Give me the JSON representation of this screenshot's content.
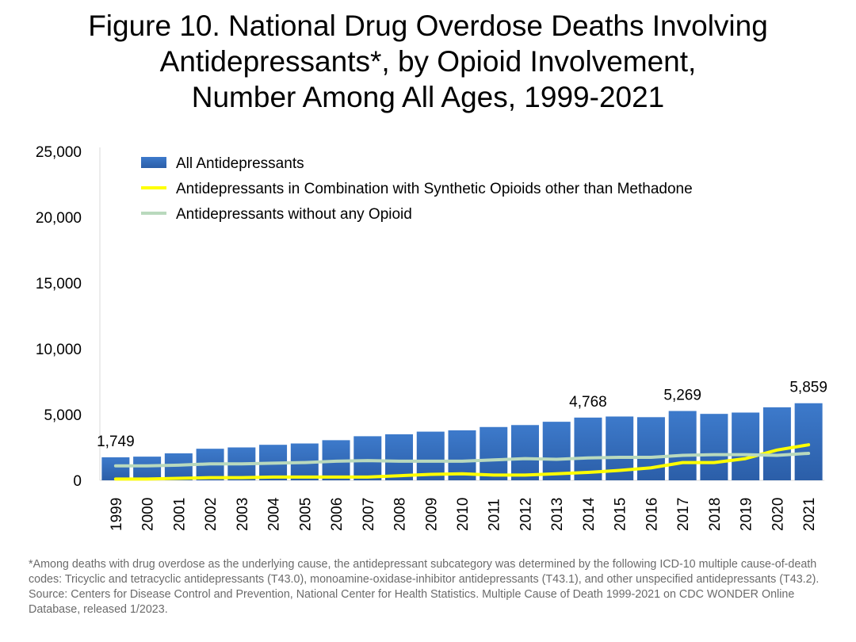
{
  "chart_data": {
    "type": "bar",
    "title_lines": [
      "Figure 10. National Drug Overdose Deaths Involving",
      "Antidepressants*, by Opioid Involvement,",
      "Number Among All Ages, 1999-2021"
    ],
    "xlabel": "",
    "ylabel": "",
    "ylim": [
      0,
      25000
    ],
    "yticks": [
      "0",
      "5,000",
      "10,000",
      "15,000",
      "20,000",
      "25,000"
    ],
    "ytick_values": [
      0,
      5000,
      10000,
      15000,
      20000,
      25000
    ],
    "grid": false,
    "legend_position": "top-left",
    "categories": [
      "1999",
      "2000",
      "2001",
      "2002",
      "2003",
      "2004",
      "2005",
      "2006",
      "2007",
      "2008",
      "2009",
      "2010",
      "2011",
      "2012",
      "2013",
      "2014",
      "2015",
      "2016",
      "2017",
      "2018",
      "2019",
      "2020",
      "2021"
    ],
    "series": [
      {
        "name": "All Antidepressants",
        "kind": "bar",
        "color": "#3a73c4",
        "values": [
          1749,
          1800,
          2050,
          2400,
          2500,
          2700,
          2800,
          3050,
          3350,
          3500,
          3700,
          3800,
          4050,
          4200,
          4450,
          4768,
          4850,
          4800,
          5269,
          5050,
          5150,
          5550,
          5859
        ]
      },
      {
        "name": "Antidepressants in Combination with Synthetic Opioids other than Methadone",
        "kind": "line",
        "color": "#ffff00",
        "values": [
          100,
          100,
          150,
          200,
          200,
          250,
          250,
          250,
          250,
          350,
          450,
          500,
          400,
          400,
          500,
          600,
          750,
          950,
          1350,
          1350,
          1650,
          2300,
          2700
        ]
      },
      {
        "name": "Antidepressants without any Opioid",
        "kind": "line",
        "color": "#b9d9bd",
        "values": [
          1100,
          1100,
          1150,
          1250,
          1250,
          1300,
          1350,
          1450,
          1500,
          1450,
          1450,
          1450,
          1550,
          1650,
          1600,
          1700,
          1750,
          1750,
          1900,
          1950,
          1950,
          1900,
          2050
        ]
      }
    ],
    "data_labels": [
      {
        "category": "1999",
        "text": "1,749"
      },
      {
        "category": "2014",
        "text": "4,768"
      },
      {
        "category": "2017",
        "text": "5,269"
      },
      {
        "category": "2021",
        "text": "5,859"
      }
    ]
  },
  "footnote": "*Among deaths with drug overdose as the underlying cause, the antidepressant subcategory was determined by the following ICD-10 multiple cause-of-death codes: Tricyclic and tetracyclic antidepressants (T43.0), monoamine-oxidase-inhibitor antidepressants (T43.1), and other unspecified antidepressants (T43.2). Source: Centers for Disease Control and Prevention, National Center for Health Statistics. Multiple Cause of Death 1999-2021 on CDC WONDER Online Database, released 1/2023."
}
